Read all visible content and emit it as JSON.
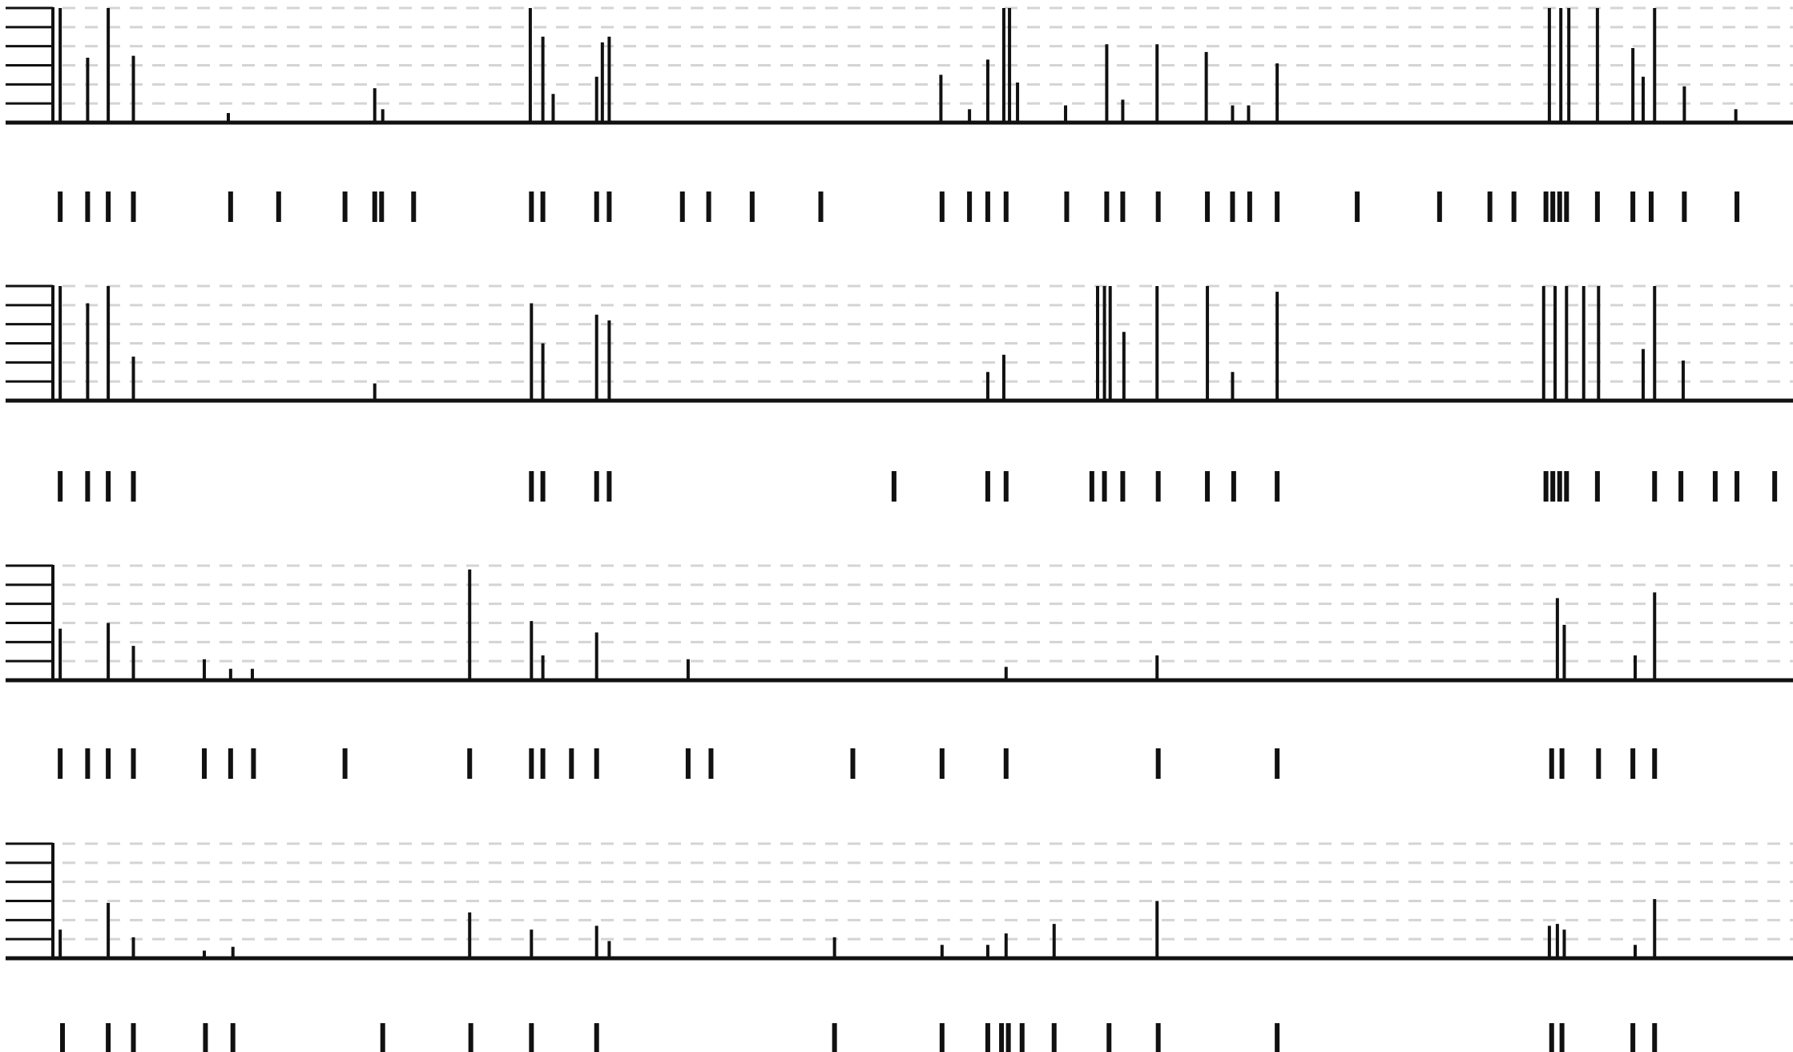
{
  "chart_data": [
    {
      "type": "spike",
      "color": "#111111",
      "grid": true,
      "xlim": [
        0,
        1520
      ],
      "ylim": [
        0,
        60
      ],
      "yticks": [
        0,
        10,
        20,
        30,
        40,
        50,
        60
      ],
      "x": [
        5,
        29,
        47,
        69,
        152,
        280,
        287,
        416,
        427,
        436,
        474,
        479,
        485,
        775,
        800,
        816,
        830,
        835,
        842,
        884,
        920,
        934,
        964,
        1007,
        1030,
        1044,
        1069,
        1307,
        1317,
        1324,
        1349,
        1380,
        1389,
        1399,
        1425,
        1470
      ],
      "values": [
        60,
        34,
        60,
        35,
        5,
        18,
        7,
        60,
        45,
        15,
        24,
        42,
        45,
        25,
        7,
        33,
        60,
        60,
        21,
        9,
        41,
        12,
        41,
        37,
        9,
        9,
        31,
        60,
        60,
        60,
        60,
        39,
        24,
        60,
        19,
        7
      ],
      "events": [
        5,
        29,
        47,
        69,
        154,
        196,
        254,
        280,
        286,
        314,
        417,
        427,
        474,
        485,
        549,
        572,
        610,
        670,
        776,
        800,
        816,
        832,
        885,
        920,
        934,
        965,
        1008,
        1030,
        1045,
        1069,
        1139,
        1211,
        1255,
        1276,
        1304,
        1310,
        1316,
        1322,
        1349,
        1380,
        1396,
        1425,
        1471
      ]
    },
    {
      "type": "spike",
      "color": "#111111",
      "grid": true,
      "xlim": [
        0,
        1520
      ],
      "ylim": [
        0,
        60
      ],
      "yticks": [
        0,
        10,
        20,
        30,
        40,
        50,
        60
      ],
      "x": [
        5,
        29,
        47,
        69,
        280,
        417,
        427,
        474,
        485,
        816,
        830,
        912,
        918,
        923,
        935,
        964,
        1008,
        1030,
        1069,
        1302,
        1312,
        1322,
        1337,
        1350,
        1389,
        1399,
        1424
      ],
      "values": [
        60,
        51,
        60,
        23,
        9,
        51,
        30,
        45,
        42,
        15,
        24,
        60,
        60,
        60,
        36,
        60,
        60,
        15,
        57,
        60,
        60,
        60,
        60,
        60,
        27,
        60,
        21
      ],
      "events": [
        5,
        29,
        47,
        69,
        417,
        427,
        474,
        485,
        734,
        816,
        832,
        907,
        918,
        934,
        965,
        1008,
        1031,
        1069,
        1304,
        1310,
        1316,
        1322,
        1349,
        1399,
        1422,
        1452,
        1471,
        1504
      ]
    },
    {
      "type": "spike",
      "color": "#111111",
      "grid": true,
      "xlim": [
        0,
        1520
      ],
      "ylim": [
        0,
        60
      ],
      "yticks": [
        0,
        10,
        20,
        30,
        40,
        50,
        60
      ],
      "x": [
        5,
        47,
        69,
        131,
        154,
        173,
        363,
        417,
        427,
        474,
        554,
        832,
        964,
        1314,
        1320,
        1382,
        1399
      ],
      "values": [
        27,
        30,
        18,
        11,
        6,
        6,
        58,
        31,
        13,
        25,
        11,
        7,
        13,
        43,
        29,
        13,
        46
      ],
      "events": [
        5,
        29,
        47,
        69,
        131,
        154,
        174,
        254,
        363,
        417,
        427,
        452,
        474,
        554,
        574,
        698,
        776,
        832,
        965,
        1069,
        1309,
        1318,
        1350,
        1380,
        1399
      ]
    },
    {
      "type": "spike",
      "color": "#111111",
      "grid": true,
      "xlim": [
        0,
        1520
      ],
      "ylim": [
        0,
        60
      ],
      "yticks": [
        0,
        10,
        20,
        30,
        40,
        50,
        60
      ],
      "x": [
        5,
        47,
        69,
        131,
        156,
        363,
        417,
        474,
        485,
        682,
        776,
        816,
        832,
        874,
        964,
        1307,
        1314,
        1320,
        1382,
        1399
      ],
      "values": [
        15,
        29,
        11,
        4,
        6,
        24,
        15,
        17,
        9,
        11,
        7,
        7,
        13,
        18,
        30,
        17,
        18,
        15,
        7,
        31
      ],
      "events": [
        7,
        47,
        69,
        132,
        156,
        287,
        364,
        417,
        474,
        682,
        776,
        816,
        828,
        834,
        846,
        874,
        922,
        965,
        1069,
        1309,
        1318,
        1380,
        1399
      ]
    }
  ]
}
